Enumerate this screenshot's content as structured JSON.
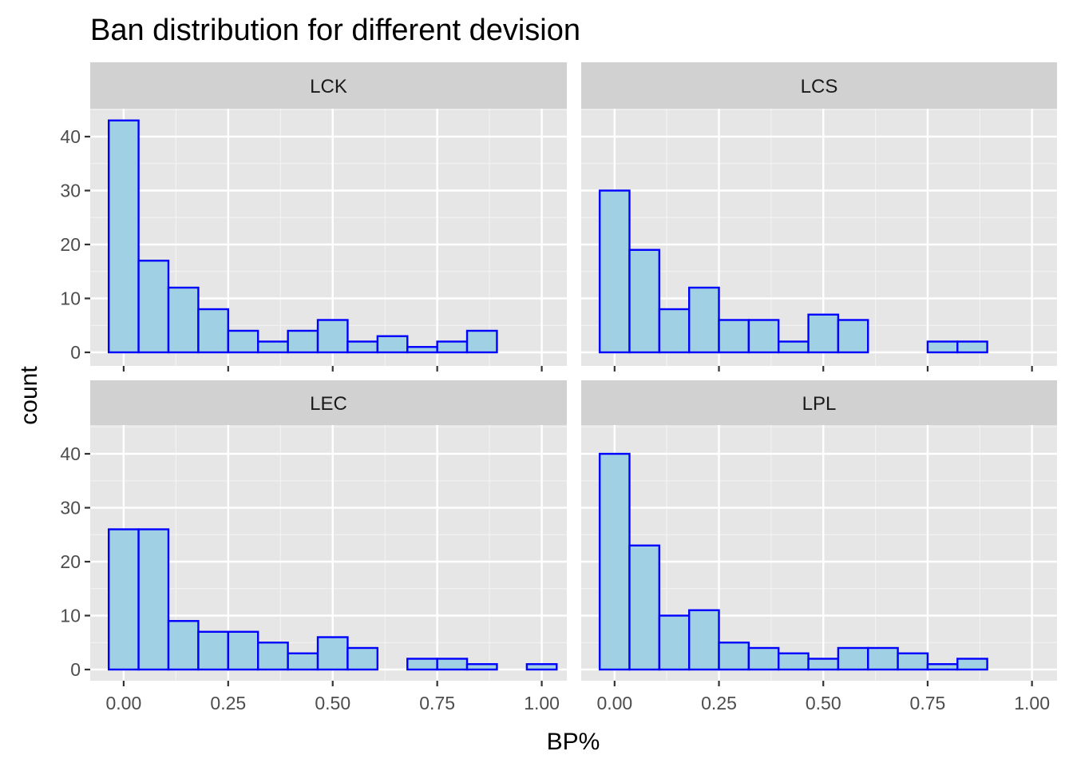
{
  "chart_data": {
    "type": "bar",
    "title": "Ban distribution for different devision",
    "xlabel": "BP%",
    "ylabel": "count",
    "bin_width": 0.0714,
    "bin_centers": [
      0.0,
      0.0714,
      0.1429,
      0.2143,
      0.2857,
      0.3571,
      0.4286,
      0.5,
      0.5714,
      0.6429,
      0.7143,
      0.7857,
      0.8571,
      0.9286,
      1.0
    ],
    "xlim": [
      -0.08,
      1.06
    ],
    "ylim": [
      0,
      45
    ],
    "x_ticks": [
      0.0,
      0.25,
      0.5,
      0.75,
      1.0
    ],
    "x_tick_labels": [
      "0.00",
      "0.25",
      "0.50",
      "0.75",
      "1.00"
    ],
    "y_ticks": [
      0,
      10,
      20,
      30,
      40
    ],
    "y_tick_labels": [
      "0",
      "10",
      "20",
      "30",
      "40"
    ],
    "grid": true,
    "bar_fill": "#a0d0e3",
    "bar_stroke": "#0000ff",
    "panel_bg": "#e6e6e6",
    "strip_bg": "#d1d1d1",
    "facets": [
      {
        "label": "LCK",
        "values": [
          43,
          17,
          12,
          8,
          4,
          2,
          4,
          6,
          2,
          3,
          1,
          2,
          4,
          0,
          0
        ]
      },
      {
        "label": "LCS",
        "values": [
          30,
          19,
          8,
          12,
          6,
          6,
          2,
          7,
          6,
          0,
          0,
          2,
          2,
          0,
          0
        ]
      },
      {
        "label": "LEC",
        "values": [
          26,
          26,
          9,
          7,
          7,
          5,
          3,
          6,
          4,
          0,
          2,
          2,
          1,
          0,
          1
        ]
      },
      {
        "label": "LPL",
        "values": [
          40,
          23,
          10,
          11,
          5,
          4,
          3,
          2,
          4,
          4,
          3,
          1,
          2,
          0,
          0
        ]
      }
    ]
  }
}
